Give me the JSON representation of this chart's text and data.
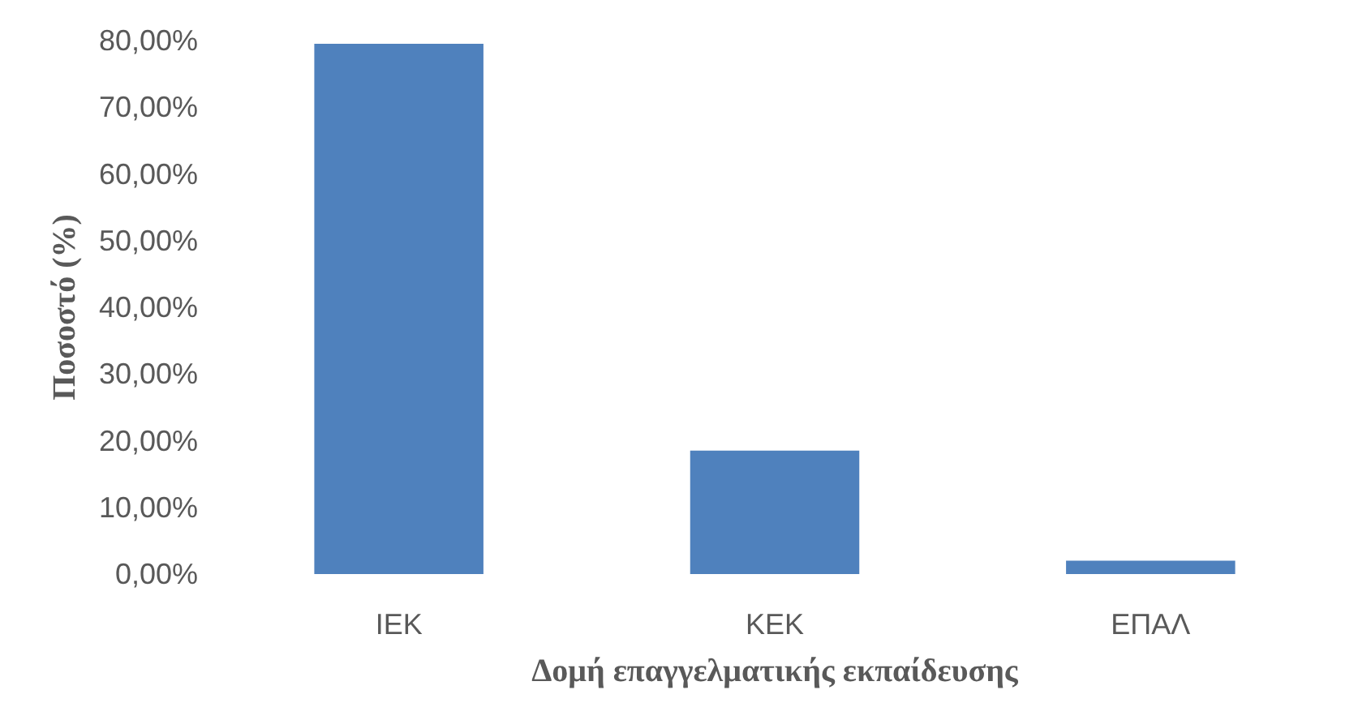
{
  "chart_data": {
    "type": "bar",
    "xlabel": "Δομή επαγγελματικής εκπαίδευσης",
    "ylabel": "Ποσοστό (%)",
    "categories": [
      "ΙΕΚ",
      "ΚΕΚ",
      "ΕΠΑΛ"
    ],
    "values": [
      79.5,
      18.5,
      2
    ],
    "color": "#4f81bd",
    "ylim": [
      0,
      80
    ],
    "yticks": [
      {
        "value": 0,
        "label": "0,00%"
      },
      {
        "value": 10,
        "label": "10,00%"
      },
      {
        "value": 20,
        "label": "20,00%"
      },
      {
        "value": 30,
        "label": "30,00%"
      },
      {
        "value": 40,
        "label": "40,00%"
      },
      {
        "value": 50,
        "label": "50,00%"
      },
      {
        "value": 60,
        "label": "60,00%"
      },
      {
        "value": 70,
        "label": "70,00%"
      },
      {
        "value": 80,
        "label": "80,00%"
      }
    ],
    "grid": false
  }
}
